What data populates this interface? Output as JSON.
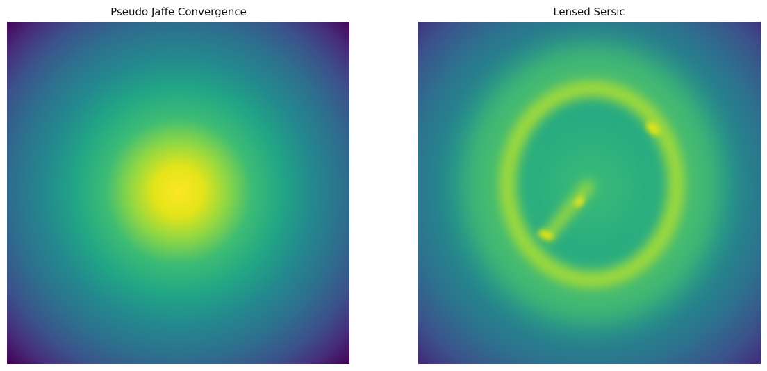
{
  "panels": [
    {
      "title": "Pseudo Jaffe Convergence"
    },
    {
      "title": "Lensed Sersic"
    }
  ]
}
